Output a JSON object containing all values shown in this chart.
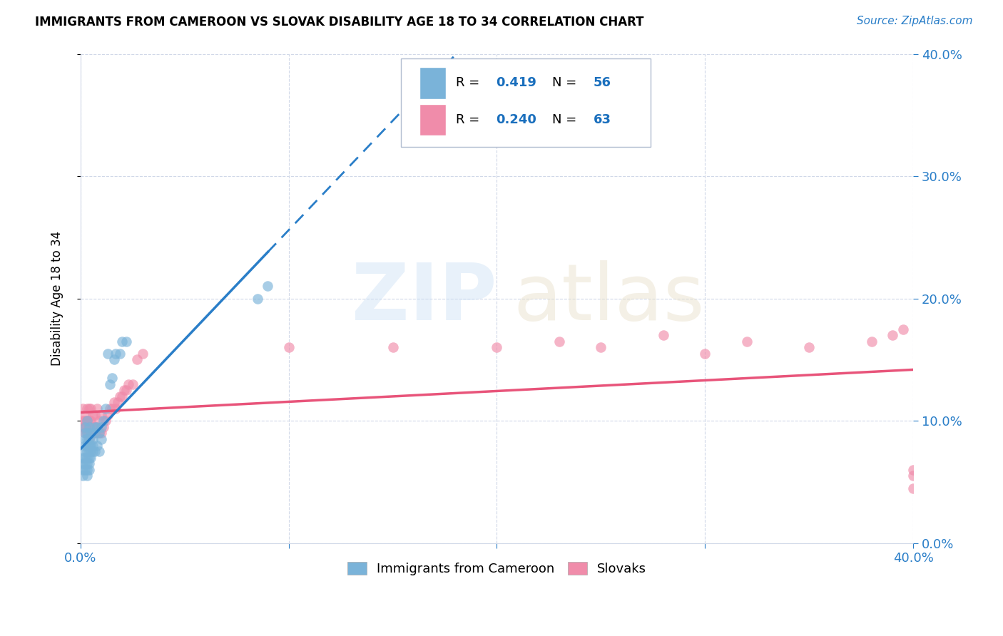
{
  "title": "IMMIGRANTS FROM CAMEROON VS SLOVAK DISABILITY AGE 18 TO 34 CORRELATION CHART",
  "source": "Source: ZipAtlas.com",
  "ylabel_label": "Disability Age 18 to 34",
  "xlim": [
    0.0,
    0.4
  ],
  "ylim": [
    0.0,
    0.4
  ],
  "legend_r_color": "#1a6fbd",
  "cameroon_x": [
    0.001,
    0.001,
    0.001,
    0.001,
    0.002,
    0.002,
    0.002,
    0.002,
    0.002,
    0.002,
    0.002,
    0.002,
    0.003,
    0.003,
    0.003,
    0.003,
    0.003,
    0.003,
    0.003,
    0.003,
    0.003,
    0.004,
    0.004,
    0.004,
    0.004,
    0.004,
    0.004,
    0.004,
    0.005,
    0.005,
    0.005,
    0.005,
    0.006,
    0.006,
    0.006,
    0.007,
    0.007,
    0.007,
    0.008,
    0.008,
    0.009,
    0.009,
    0.01,
    0.01,
    0.011,
    0.012,
    0.013,
    0.014,
    0.015,
    0.016,
    0.017,
    0.019,
    0.02,
    0.022,
    0.085,
    0.09
  ],
  "cameroon_y": [
    0.055,
    0.06,
    0.065,
    0.07,
    0.06,
    0.065,
    0.07,
    0.075,
    0.08,
    0.085,
    0.09,
    0.095,
    0.055,
    0.06,
    0.065,
    0.07,
    0.075,
    0.08,
    0.085,
    0.09,
    0.1,
    0.06,
    0.065,
    0.07,
    0.075,
    0.08,
    0.085,
    0.095,
    0.07,
    0.075,
    0.08,
    0.09,
    0.075,
    0.08,
    0.085,
    0.075,
    0.09,
    0.095,
    0.08,
    0.095,
    0.075,
    0.09,
    0.085,
    0.095,
    0.1,
    0.11,
    0.155,
    0.13,
    0.135,
    0.15,
    0.155,
    0.155,
    0.165,
    0.165,
    0.2,
    0.21
  ],
  "slovak_x": [
    0.001,
    0.001,
    0.001,
    0.002,
    0.002,
    0.002,
    0.002,
    0.003,
    0.003,
    0.003,
    0.003,
    0.004,
    0.004,
    0.004,
    0.004,
    0.004,
    0.005,
    0.005,
    0.005,
    0.006,
    0.006,
    0.006,
    0.007,
    0.007,
    0.007,
    0.008,
    0.008,
    0.008,
    0.009,
    0.009,
    0.01,
    0.01,
    0.011,
    0.012,
    0.013,
    0.014,
    0.015,
    0.016,
    0.017,
    0.018,
    0.019,
    0.02,
    0.021,
    0.022,
    0.023,
    0.025,
    0.027,
    0.03,
    0.1,
    0.15,
    0.2,
    0.23,
    0.25,
    0.28,
    0.3,
    0.32,
    0.35,
    0.38,
    0.39,
    0.395,
    0.4,
    0.4,
    0.4
  ],
  "slovak_y": [
    0.095,
    0.1,
    0.11,
    0.09,
    0.095,
    0.1,
    0.105,
    0.09,
    0.095,
    0.1,
    0.11,
    0.085,
    0.09,
    0.095,
    0.1,
    0.11,
    0.09,
    0.1,
    0.11,
    0.09,
    0.095,
    0.105,
    0.09,
    0.095,
    0.105,
    0.09,
    0.095,
    0.11,
    0.09,
    0.1,
    0.09,
    0.105,
    0.095,
    0.1,
    0.105,
    0.11,
    0.11,
    0.115,
    0.11,
    0.115,
    0.12,
    0.12,
    0.125,
    0.125,
    0.13,
    0.13,
    0.15,
    0.155,
    0.16,
    0.16,
    0.16,
    0.165,
    0.16,
    0.17,
    0.155,
    0.165,
    0.16,
    0.165,
    0.17,
    0.175,
    0.045,
    0.055,
    0.06
  ],
  "cameroon_color": "#7ab3d9",
  "slovak_color": "#f08caa",
  "trend_cameroon_color": "#2a7ec8",
  "trend_slovak_color": "#e8547a",
  "grid_color": "#d0d8e8",
  "background_color": "#ffffff",
  "title_fontsize": 12,
  "axis_tick_color": "#2a7ec8",
  "R_cameroon": "0.419",
  "N_cameroon": "56",
  "R_slovak": "0.240",
  "N_slovak": "63"
}
